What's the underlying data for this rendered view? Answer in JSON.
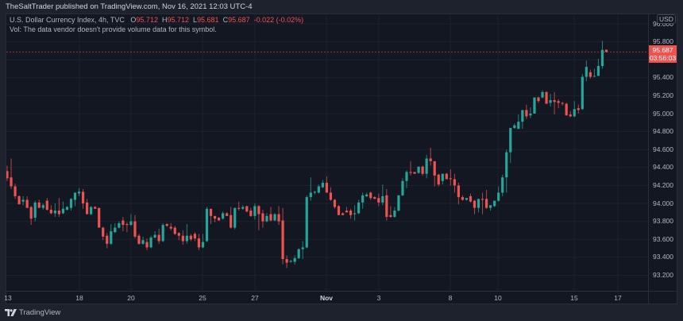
{
  "header": {
    "publish_text": "TheSaltTrader published on TradingView.com, Nov 16, 2021 12:03 UTC-4"
  },
  "legend": {
    "symbol": "U.S. Dollar Currency Index, 4h, TVC",
    "o_label": "O",
    "o_value": "95.712",
    "h_label": "H",
    "h_value": "95.712",
    "l_label": "L",
    "l_value": "95.681",
    "c_label": "C",
    "c_value": "95.687",
    "change": "-0.022 (-0.02%)",
    "volume_note": "Vol: The data vendor doesn't provide volume data for this symbol."
  },
  "price_axis": {
    "currency": "USD",
    "last_price": "95.687",
    "countdown": "03:56:03"
  },
  "footer": {
    "brand": "TradingView"
  },
  "colors": {
    "up": "#26a69a",
    "down": "#ef5350",
    "background": "#131722",
    "grid": "#1e2230",
    "last_price": "#ef5350"
  },
  "chart_data": {
    "type": "candlestick",
    "title": "U.S. Dollar Currency Index, 4h, TVC",
    "xlabel": "",
    "ylabel": "USD",
    "ylim": [
      93.05,
      96.15
    ],
    "grid": true,
    "y_ticks": [
      "96.000",
      "95.800",
      "95.600",
      "95.400",
      "95.200",
      "95.000",
      "94.800",
      "94.600",
      "94.400",
      "94.200",
      "94.000",
      "93.800",
      "93.600",
      "93.400",
      "93.200"
    ],
    "x_ticks": [
      {
        "label": "13",
        "x": 10,
        "grid_x": 7
      },
      {
        "label": "18",
        "x": 100,
        "grid_x": 100
      },
      {
        "label": "20",
        "x": 165,
        "grid_x": 165
      },
      {
        "label": "25",
        "x": 255,
        "grid_x": 255
      },
      {
        "label": "27",
        "x": 321,
        "grid_x": 321
      },
      {
        "label": "Nov",
        "x": 411,
        "grid_x": 411,
        "bold": true
      },
      {
        "label": "3",
        "x": 477,
        "grid_x": 477
      },
      {
        "label": "8",
        "x": 567,
        "grid_x": 567
      },
      {
        "label": "10",
        "x": 627,
        "grid_x": 627
      },
      {
        "label": "15",
        "x": 723,
        "grid_x": 723
      },
      {
        "label": "17",
        "x": 778,
        "grid_x": 778
      }
    ],
    "last_price": 95.687,
    "candle_fields": [
      "open",
      "high",
      "low",
      "close"
    ],
    "candles": [
      [
        94.36,
        94.42,
        94.25,
        94.28
      ],
      [
        94.29,
        94.5,
        94.16,
        94.19
      ],
      [
        94.19,
        94.22,
        94.05,
        94.08
      ],
      [
        94.08,
        94.09,
        93.99,
        93.99
      ],
      [
        94.02,
        94.08,
        93.98,
        94.04
      ],
      [
        94.04,
        94.08,
        93.95,
        93.95
      ],
      [
        93.96,
        93.97,
        93.76,
        93.83
      ],
      [
        93.84,
        94.03,
        93.8,
        94.01
      ],
      [
        94.01,
        94.04,
        93.95,
        93.95
      ],
      [
        93.95,
        94.0,
        93.93,
        93.98
      ],
      [
        94.03,
        94.06,
        93.92,
        93.93
      ],
      [
        93.93,
        93.98,
        93.88,
        93.89
      ],
      [
        93.89,
        94.0,
        93.85,
        93.92
      ],
      [
        93.92,
        94.06,
        93.85,
        93.88
      ],
      [
        93.89,
        94.02,
        93.88,
        93.94
      ],
      [
        93.93,
        93.97,
        93.92,
        93.96
      ],
      [
        93.95,
        94.06,
        93.92,
        94.05
      ],
      [
        94.04,
        94.12,
        93.97,
        94.12
      ],
      [
        94.11,
        94.17,
        94.08,
        94.13
      ],
      [
        94.13,
        94.16,
        93.94,
        94.0
      ],
      [
        94.01,
        94.05,
        93.88,
        93.88
      ],
      [
        93.88,
        93.97,
        93.87,
        93.96
      ],
      [
        93.96,
        93.97,
        93.94,
        93.94
      ],
      [
        93.95,
        93.95,
        93.73,
        93.73
      ],
      [
        93.73,
        93.74,
        93.59,
        93.63
      ],
      [
        93.64,
        93.67,
        93.5,
        93.55
      ],
      [
        93.55,
        93.77,
        93.54,
        93.69
      ],
      [
        93.68,
        93.78,
        93.67,
        93.73
      ],
      [
        93.73,
        93.8,
        93.72,
        93.78
      ],
      [
        93.81,
        93.85,
        93.69,
        93.76
      ],
      [
        93.77,
        93.79,
        93.68,
        93.76
      ],
      [
        93.76,
        93.88,
        93.75,
        93.8
      ],
      [
        93.8,
        93.87,
        93.61,
        93.63
      ],
      [
        93.64,
        93.66,
        93.54,
        93.55
      ],
      [
        93.55,
        93.63,
        93.54,
        93.59
      ],
      [
        93.57,
        93.61,
        93.48,
        93.51
      ],
      [
        93.51,
        93.64,
        93.5,
        93.62
      ],
      [
        93.62,
        93.69,
        93.61,
        93.65
      ],
      [
        93.65,
        93.72,
        93.55,
        93.58
      ],
      [
        93.58,
        93.78,
        93.57,
        93.76
      ],
      [
        93.77,
        93.78,
        93.74,
        93.75
      ],
      [
        93.74,
        93.78,
        93.7,
        93.72
      ],
      [
        93.73,
        93.75,
        93.65,
        93.66
      ],
      [
        93.67,
        93.68,
        93.59,
        93.64
      ],
      [
        93.64,
        93.7,
        93.54,
        93.58
      ],
      [
        93.58,
        93.77,
        93.55,
        93.64
      ],
      [
        93.64,
        93.66,
        93.58,
        93.6
      ],
      [
        93.66,
        93.68,
        93.58,
        93.61
      ],
      [
        93.61,
        93.66,
        93.48,
        93.51
      ],
      [
        93.51,
        93.66,
        93.5,
        93.57
      ],
      [
        93.58,
        93.96,
        93.57,
        93.94
      ],
      [
        93.94,
        93.94,
        93.77,
        93.86
      ],
      [
        93.86,
        93.86,
        93.79,
        93.83
      ],
      [
        93.84,
        93.85,
        93.81,
        93.81
      ],
      [
        93.83,
        93.91,
        93.82,
        93.89
      ],
      [
        93.89,
        93.9,
        93.86,
        93.86
      ],
      [
        93.87,
        93.96,
        93.72,
        93.73
      ],
      [
        93.73,
        93.95,
        93.71,
        93.95
      ],
      [
        93.95,
        94.02,
        93.92,
        93.94
      ],
      [
        93.94,
        93.98,
        93.93,
        93.96
      ],
      [
        93.97,
        93.97,
        93.9,
        93.91
      ],
      [
        93.92,
        93.95,
        93.85,
        93.86
      ],
      [
        93.86,
        94.0,
        93.82,
        93.97
      ],
      [
        93.97,
        93.98,
        93.7,
        93.88
      ],
      [
        93.89,
        93.93,
        93.73,
        93.8
      ],
      [
        93.8,
        93.89,
        93.79,
        93.86
      ],
      [
        93.88,
        93.96,
        93.8,
        93.81
      ],
      [
        93.81,
        93.89,
        93.8,
        93.88
      ],
      [
        93.88,
        93.97,
        93.76,
        93.8
      ],
      [
        93.81,
        93.95,
        93.32,
        93.38
      ],
      [
        93.38,
        93.42,
        93.28,
        93.34
      ],
      [
        93.35,
        93.37,
        93.34,
        93.36
      ],
      [
        93.35,
        93.42,
        93.32,
        93.39
      ],
      [
        93.39,
        93.5,
        93.38,
        93.49
      ],
      [
        93.49,
        93.58,
        93.38,
        93.51
      ],
      [
        93.51,
        94.09,
        93.5,
        94.07
      ],
      [
        94.07,
        94.29,
        94.03,
        94.12
      ],
      [
        94.12,
        94.14,
        94.1,
        94.13
      ],
      [
        94.12,
        94.21,
        94.11,
        94.19
      ],
      [
        94.18,
        94.26,
        94.17,
        94.23
      ],
      [
        94.23,
        94.3,
        94.12,
        94.12
      ],
      [
        94.12,
        94.18,
        94.03,
        94.04
      ],
      [
        94.04,
        94.05,
        93.94,
        93.96
      ],
      [
        93.97,
        93.98,
        93.87,
        93.87
      ],
      [
        93.89,
        93.9,
        93.87,
        93.87
      ],
      [
        93.92,
        93.96,
        93.9,
        93.9
      ],
      [
        93.92,
        93.94,
        93.83,
        93.87
      ],
      [
        93.88,
        93.98,
        93.81,
        93.89
      ],
      [
        93.89,
        94.04,
        93.88,
        94.01
      ],
      [
        94.01,
        94.12,
        93.94,
        94.09
      ],
      [
        94.08,
        94.12,
        94.07,
        94.1
      ],
      [
        94.12,
        94.13,
        94.04,
        94.06
      ],
      [
        94.07,
        94.08,
        94.05,
        94.05
      ],
      [
        94.06,
        94.11,
        93.97,
        94.01
      ],
      [
        94.01,
        94.21,
        93.98,
        94.08
      ],
      [
        94.09,
        94.16,
        93.81,
        93.85
      ],
      [
        93.87,
        93.97,
        93.84,
        93.85
      ],
      [
        93.85,
        93.96,
        93.84,
        93.92
      ],
      [
        93.92,
        94.09,
        93.91,
        94.09
      ],
      [
        94.09,
        94.28,
        94.08,
        94.25
      ],
      [
        94.25,
        94.37,
        94.17,
        94.35
      ],
      [
        94.35,
        94.47,
        94.31,
        94.34
      ],
      [
        94.35,
        94.35,
        94.33,
        94.33
      ],
      [
        94.34,
        94.41,
        94.33,
        94.41
      ],
      [
        94.41,
        94.42,
        94.31,
        94.33
      ],
      [
        94.33,
        94.54,
        94.28,
        94.5
      ],
      [
        94.5,
        94.62,
        94.42,
        94.47
      ],
      [
        94.47,
        94.47,
        94.19,
        94.31
      ],
      [
        94.32,
        94.33,
        94.19,
        94.21
      ],
      [
        94.25,
        94.33,
        94.21,
        94.33
      ],
      [
        94.33,
        94.34,
        94.27,
        94.27
      ],
      [
        94.28,
        94.38,
        94.2,
        94.27
      ],
      [
        94.27,
        94.33,
        94.12,
        94.2
      ],
      [
        94.2,
        94.23,
        93.99,
        94.07
      ],
      [
        94.07,
        94.09,
        94.03,
        94.04
      ],
      [
        94.04,
        94.06,
        94.03,
        94.06
      ],
      [
        94.08,
        94.11,
        94.01,
        94.02
      ],
      [
        94.03,
        94.04,
        93.88,
        93.95
      ],
      [
        93.95,
        94.05,
        93.9,
        94.05
      ],
      [
        94.05,
        94.12,
        93.88,
        94.04
      ],
      [
        94.05,
        94.15,
        93.94,
        93.95
      ],
      [
        93.95,
        93.98,
        93.92,
        93.98
      ],
      [
        93.97,
        94.03,
        93.96,
        94.03
      ],
      [
        94.03,
        94.19,
        94.02,
        94.12
      ],
      [
        94.12,
        94.32,
        94.08,
        94.29
      ],
      [
        94.29,
        94.6,
        94.12,
        94.57
      ],
      [
        94.57,
        94.84,
        94.45,
        94.84
      ],
      [
        94.84,
        94.89,
        94.83,
        94.87
      ],
      [
        94.83,
        94.99,
        94.83,
        94.91
      ],
      [
        94.91,
        95.04,
        94.83,
        95.04
      ],
      [
        95.04,
        95.1,
        94.94,
        94.97
      ],
      [
        94.98,
        95.07,
        94.95,
        95.0
      ],
      [
        95.0,
        95.18,
        95.0,
        95.18
      ],
      [
        95.18,
        95.19,
        95.12,
        95.14
      ],
      [
        95.18,
        95.26,
        95.17,
        95.24
      ],
      [
        95.24,
        95.25,
        95.11,
        95.11
      ],
      [
        95.12,
        95.22,
        95.08,
        95.15
      ],
      [
        95.15,
        95.24,
        94.99,
        95.13
      ],
      [
        95.14,
        95.16,
        95.06,
        95.12
      ],
      [
        95.12,
        95.13,
        95.09,
        95.11
      ],
      [
        95.11,
        95.12,
        94.98,
        94.98
      ],
      [
        94.99,
        95.03,
        94.96,
        94.97
      ],
      [
        94.97,
        95.14,
        94.96,
        95.05
      ],
      [
        95.06,
        95.1,
        95.0,
        95.04
      ],
      [
        95.05,
        95.44,
        95.04,
        95.41
      ],
      [
        95.41,
        95.59,
        95.36,
        95.52
      ],
      [
        95.46,
        95.49,
        95.39,
        95.41
      ],
      [
        95.42,
        95.5,
        95.41,
        95.42
      ],
      [
        95.42,
        95.61,
        95.42,
        95.53
      ],
      [
        95.53,
        95.81,
        95.5,
        95.71
      ],
      [
        95.712,
        95.712,
        95.681,
        95.687
      ]
    ]
  }
}
